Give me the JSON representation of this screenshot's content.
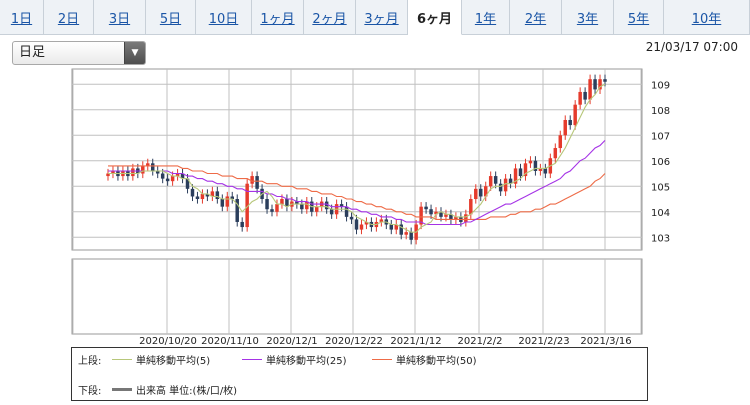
{
  "tabs": [
    "1日",
    "2日",
    "3日",
    "5日",
    "10日",
    "1ヶ月",
    "2ヶ月",
    "3ヶ月",
    "6ヶ月",
    "1年",
    "2年",
    "3年",
    "5年",
    "10年"
  ],
  "active_tab": 8,
  "period_select": {
    "value": "日足"
  },
  "timestamp": "21/03/17 07:00",
  "legend": {
    "upper_label": "上段:",
    "lower_label": "下段:",
    "ma5": "単純移動平均(5)",
    "ma25": "単純移動平均(25)",
    "ma50": "単純移動平均(50)",
    "volume": "出来高 単位:(株/口/枚)"
  },
  "colors": {
    "up": "#e53b2c",
    "down": "#2b3e5c",
    "ma5": "#b7c77a",
    "ma25": "#a533e6",
    "ma50": "#ee6b47",
    "volume": "#777777"
  },
  "chart_data": {
    "type": "candlestick",
    "x_tick_labels": [
      "2020/10/20",
      "2020/11/10",
      "2020/12/1",
      "2020/12/22",
      "2021/1/12",
      "2021/2/2",
      "2021/2/23",
      "2021/3/16"
    ],
    "y_tick_labels": [
      "103",
      "104",
      "105",
      "106",
      "107",
      "108",
      "109"
    ],
    "ylim": [
      102.5,
      109.6
    ],
    "x_range": [
      "2020/9/17",
      "2021/3/16"
    ],
    "candles_close": [
      105.5,
      105.6,
      105.4,
      105.6,
      105.4,
      105.7,
      105.5,
      105.8,
      105.9,
      105.6,
      105.5,
      105.3,
      105.2,
      105.4,
      105.5,
      105.3,
      104.9,
      104.6,
      104.5,
      104.7,
      104.6,
      104.8,
      104.5,
      104.2,
      104.6,
      104.5,
      103.6,
      103.4,
      105.1,
      105.4,
      104.9,
      104.5,
      104.1,
      104.0,
      104.3,
      104.5,
      104.2,
      104.4,
      104.3,
      104.1,
      104.4,
      104.0,
      104.2,
      104.4,
      104.1,
      103.9,
      104.3,
      104.2,
      103.8,
      103.7,
      103.3,
      103.5,
      103.6,
      103.4,
      103.6,
      103.7,
      103.5,
      103.3,
      103.5,
      103.1,
      103.2,
      102.9,
      103.5,
      104.2,
      104.1,
      103.9,
      104.0,
      103.8,
      103.9,
      103.7,
      103.8,
      103.6,
      103.9,
      104.5,
      104.9,
      104.6,
      105.0,
      105.4,
      105.1,
      104.8,
      105.3,
      105.1,
      105.7,
      105.4,
      105.9,
      106.0,
      105.6,
      105.7,
      105.5,
      106.1,
      106.5,
      107.0,
      107.6,
      107.4,
      108.2,
      108.7,
      108.4,
      109.2,
      108.8,
      109.2,
      109.1
    ],
    "ma5": [
      105.5,
      105.5,
      105.5,
      105.5,
      105.5,
      105.5,
      105.5,
      105.6,
      105.6,
      105.6,
      105.6,
      105.6,
      105.5,
      105.4,
      105.4,
      105.3,
      105.3,
      105.0,
      104.9,
      104.7,
      104.7,
      104.6,
      104.6,
      104.5,
      104.5,
      104.5,
      104.3,
      104.0,
      104.2,
      104.4,
      104.5,
      104.7,
      104.8,
      104.6,
      104.3,
      104.3,
      104.2,
      104.3,
      104.3,
      104.3,
      104.3,
      104.2,
      104.2,
      104.2,
      104.2,
      104.1,
      104.1,
      104.1,
      104.1,
      104.0,
      103.8,
      103.7,
      103.6,
      103.5,
      103.5,
      103.6,
      103.6,
      103.5,
      103.5,
      103.4,
      103.3,
      103.2,
      103.2,
      103.4,
      103.5,
      103.6,
      103.9,
      104.0,
      103.9,
      103.9,
      103.8,
      103.8,
      103.8,
      103.9,
      104.1,
      104.3,
      104.6,
      104.9,
      105.0,
      105.0,
      105.1,
      105.1,
      105.2,
      105.3,
      105.5,
      105.6,
      105.7,
      105.7,
      105.7,
      105.8,
      105.9,
      106.2,
      106.5,
      106.9,
      107.3,
      107.7,
      108.1,
      108.4,
      108.6,
      108.9,
      109.0
    ],
    "ma25": [
      105.6,
      105.6,
      105.6,
      105.6,
      105.6,
      105.6,
      105.6,
      105.6,
      105.6,
      105.6,
      105.6,
      105.6,
      105.6,
      105.5,
      105.5,
      105.5,
      105.4,
      105.4,
      105.3,
      105.3,
      105.2,
      105.2,
      105.1,
      105.1,
      105.0,
      105.0,
      104.9,
      104.9,
      104.8,
      104.8,
      104.8,
      104.8,
      104.7,
      104.7,
      104.6,
      104.6,
      104.5,
      104.5,
      104.4,
      104.4,
      104.4,
      104.3,
      104.3,
      104.3,
      104.3,
      104.2,
      104.2,
      104.2,
      104.2,
      104.1,
      104.1,
      104.0,
      104.0,
      103.9,
      103.9,
      103.8,
      103.8,
      103.8,
      103.7,
      103.7,
      103.6,
      103.6,
      103.6,
      103.6,
      103.5,
      103.5,
      103.5,
      103.5,
      103.5,
      103.5,
      103.5,
      103.5,
      103.6,
      103.6,
      103.7,
      103.8,
      103.9,
      104.0,
      104.1,
      104.2,
      104.3,
      104.3,
      104.4,
      104.5,
      104.6,
      104.7,
      104.8,
      104.9,
      105.0,
      105.1,
      105.2,
      105.3,
      105.5,
      105.6,
      105.8,
      106.0,
      106.1,
      106.3,
      106.5,
      106.6,
      106.8
    ],
    "ma50": [
      105.8,
      105.8,
      105.8,
      105.8,
      105.8,
      105.8,
      105.8,
      105.8,
      105.8,
      105.8,
      105.8,
      105.8,
      105.8,
      105.8,
      105.8,
      105.7,
      105.7,
      105.6,
      105.6,
      105.6,
      105.5,
      105.5,
      105.5,
      105.4,
      105.4,
      105.4,
      105.3,
      105.3,
      105.3,
      105.2,
      105.2,
      105.2,
      105.1,
      105.1,
      105.1,
      105.0,
      105.0,
      105.0,
      104.9,
      104.9,
      104.9,
      104.8,
      104.8,
      104.7,
      104.7,
      104.7,
      104.6,
      104.6,
      104.5,
      104.5,
      104.4,
      104.4,
      104.3,
      104.3,
      104.2,
      104.2,
      104.1,
      104.1,
      104.0,
      104.0,
      103.9,
      103.9,
      103.8,
      103.8,
      103.8,
      103.8,
      103.7,
      103.7,
      103.7,
      103.7,
      103.7,
      103.7,
      103.7,
      103.7,
      103.7,
      103.7,
      103.7,
      103.8,
      103.8,
      103.8,
      103.8,
      103.9,
      103.9,
      104.0,
      104.0,
      104.0,
      104.1,
      104.1,
      104.2,
      104.3,
      104.3,
      104.4,
      104.5,
      104.6,
      104.7,
      104.8,
      104.9,
      105.0,
      105.2,
      105.3,
      105.5
    ]
  }
}
